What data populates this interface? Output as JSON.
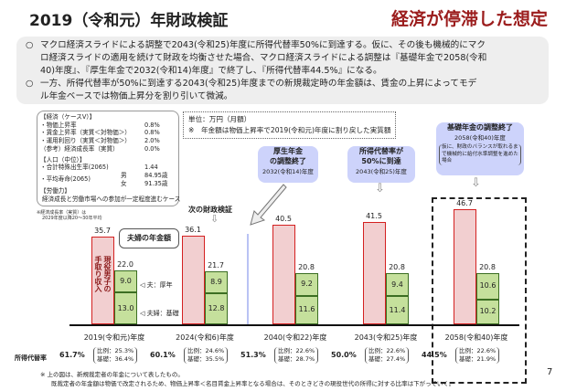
{
  "header": {
    "title": "2019（令和元）年財政検証",
    "subtitle": "経済が停滞した想定"
  },
  "bullets": [
    {
      "marker": "○",
      "lines": [
        "マクロ経済スライドによる調整で2043(令和25)年度に所得代替率50%に到達する。仮に、その後も機械的にマク",
        "ロ経済スライドの適用を続けて財政を均衡させた場合、マクロ経済スライドによる調整は『基礎年金で2058(令和",
        "40)年度』、『厚生年金で2032(令和14)年度』で終了し、『所得代替率44.5%』になる。"
      ]
    },
    {
      "marker": "○",
      "lines": [
        "一方、所得代替率が50%に到達する2043(令和25)年度までの新規裁定時の年金額は、賃金の上昇によってモデ",
        "ル年金ベースでは物価上昇分を割り引いて微減。"
      ]
    }
  ],
  "assumptions": {
    "econ_head": "【経済（ケースⅤ）】",
    "econ": [
      [
        "・物価上昇率",
        "0.8%"
      ],
      [
        "・賃金上昇率（実質＜対物価＞）",
        "0.8%"
      ],
      [
        "・運用利回り（実質＜対物価＞）",
        "2.0%"
      ],
      [
        "（参考）経済成長率（実質）",
        "0.0%"
      ]
    ],
    "pop_head": "【人口（中位）】",
    "tfr": [
      "・合計特殊出生率(2065)",
      "1.44"
    ],
    "life_label": "・平均寿命(2065)",
    "life": [
      [
        "男",
        "84.95歳"
      ],
      [
        "女",
        "91.35歳"
      ]
    ],
    "labor_head": "【労働力】",
    "labor": "経済成長と労働市場への参加が一定程度進むケース",
    "note": [
      "※経済成長率（実質）は",
      "2029年度以降20～30年平均"
    ]
  },
  "unit_box": {
    "line1": "単位：万円（月額）",
    "line2": "※　年金額は物価上昇率で2019(令和元)年度に割り戻した実質額"
  },
  "callouts": {
    "next": "次の財政検証",
    "kosei": {
      "title1": "厚生年金",
      "title2": "の調整終了",
      "year": "2032(令和14)年度"
    },
    "rate50": {
      "title1": "所得代替率が",
      "title2": "50%に到達",
      "year": "2043(令和25)年度"
    },
    "kiso": {
      "title": "基礎年金の調整終了",
      "year": "2058(令和40)年度",
      "note": "仮に、財政のバランスが取れるまで機械的に給付水準調整を進めた場合"
    },
    "couple": "夫婦の年金額",
    "red_label": "現役男子の手取り収入",
    "upper_label": "夫：厚年",
    "lower_label": "夫婦：基礎"
  },
  "chart_data": {
    "type": "bar",
    "title": "",
    "ylabel": "万円（月額）",
    "categories": [
      "2019(令和元)年度",
      "2024(令和6)年度",
      "2040(令和22)年度",
      "2043(令和25)年度",
      "2058(令和40)年度"
    ],
    "series": [
      {
        "name": "現役男子の手取り収入",
        "values": [
          35.7,
          36.1,
          40.5,
          41.5,
          46.7
        ],
        "color": "#f2cfd0"
      },
      {
        "name": "夫婦の年金額",
        "values": [
          22.0,
          21.7,
          20.8,
          20.8,
          20.8
        ],
        "color": "#c5e09c"
      },
      {
        "name": "夫：厚年",
        "values": [
          9.0,
          8.9,
          9.2,
          9.4,
          10.6
        ]
      },
      {
        "name": "夫婦：基礎",
        "values": [
          13.0,
          12.8,
          11.6,
          11.4,
          10.2
        ]
      }
    ],
    "ratio_label": "所得代替率",
    "ratios": [
      "61.7%",
      "60.1%",
      "51.3%",
      "50.0%",
      "44.5%"
    ],
    "hirei": [
      "比例：25.3%",
      "比例：24.6%",
      "比例：22.6%",
      "比例：22.6%",
      "比例：22.6%"
    ],
    "kiso": [
      "基礎：36.4%",
      "基礎：35.5%",
      "基礎：28.7%",
      "基礎：27.4%",
      "基礎：21.9%"
    ],
    "ylim": [
      0,
      50
    ]
  },
  "notes": [
    "※ 上の図は、新規裁定者の年金について表したもの。",
    "既裁定者の年金額は物価で改定されるため、物価上昇率＜名目賃金上昇率となる場合は、そのときどきの現役世代の所得に対する比率は下がっていく。"
  ],
  "page_number": "7"
}
